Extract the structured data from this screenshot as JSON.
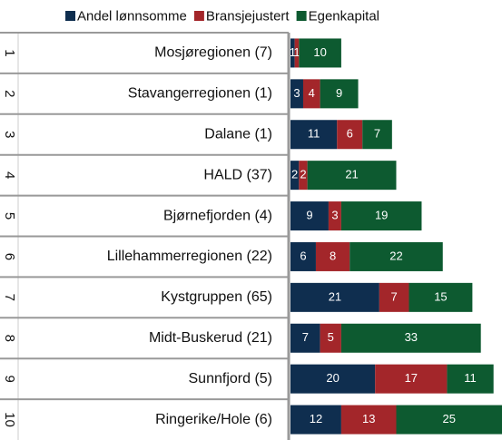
{
  "chart_data": {
    "type": "stacked-bar",
    "ranks": [
      1,
      2,
      3,
      4,
      5,
      6,
      7,
      8,
      9,
      10
    ],
    "categories": [
      "Mosjøregionen (7)",
      "Stavangerregionen (1)",
      "Dalane (1)",
      "HALD (37)",
      "Bjørnefjorden (4)",
      "Lillehammerregionen (22)",
      "Kystgruppen (65)",
      "Midt-Buskerud (21)",
      "Sunnfjord (5)",
      "Ringerike/Hole (6)"
    ],
    "series": [
      {
        "name": "Andel lønnsomme",
        "color": "#0f2e4f",
        "values": [
          1,
          3,
          11,
          2,
          9,
          6,
          21,
          7,
          20,
          12
        ]
      },
      {
        "name": "Bransjejustert",
        "color": "#a3262a",
        "values": [
          1,
          4,
          6,
          2,
          3,
          8,
          7,
          5,
          17,
          13
        ]
      },
      {
        "name": "Egenkapital",
        "color": "#0d5a30",
        "values": [
          10,
          9,
          7,
          21,
          19,
          22,
          15,
          33,
          11,
          25
        ]
      }
    ],
    "legend": "top"
  }
}
